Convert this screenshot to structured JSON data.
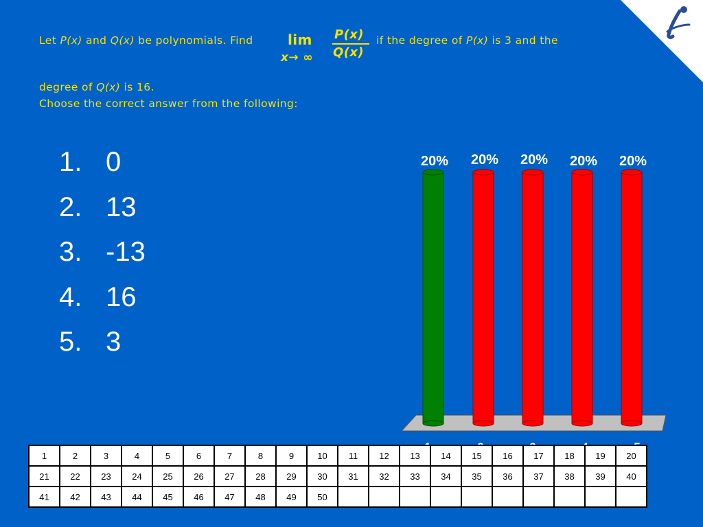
{
  "question": {
    "prefix": "Let ",
    "p": "P(x)",
    "and1": " and ",
    "q": "Q(x)",
    "be": " be polynomials. Find",
    "lim": "lim",
    "limit_sub": "x→ ∞",
    "numerator": "P(x)",
    "denominator": "Q(x)",
    "if_text": "if the degree of ",
    "p2": "P(x)",
    "is3": " is 3 and the",
    "degree_of": "degree of ",
    "q2": "Q(x)",
    "is16": " is 16.",
    "choose": "Choose the correct answer from the following:"
  },
  "answers": [
    {
      "index": "1.",
      "text": "0"
    },
    {
      "index": "2.",
      "text": "13"
    },
    {
      "index": "3.",
      "text": "-13"
    },
    {
      "index": "4.",
      "text": "16"
    },
    {
      "index": "5.",
      "text": "3"
    }
  ],
  "chart_data": {
    "type": "bar",
    "categories": [
      "1",
      "2",
      "3",
      "4",
      "5"
    ],
    "values": [
      20,
      20,
      20,
      20,
      20
    ],
    "data_labels": [
      "20%",
      "20%",
      "20%",
      "20%",
      "20%"
    ],
    "ylim": [
      0,
      20
    ],
    "colors": [
      "#008000",
      "#ff0000",
      "#ff0000",
      "#ff0000",
      "#ff0000"
    ],
    "grid": false
  },
  "response_grid": {
    "rows": [
      [
        "1",
        "2",
        "3",
        "4",
        "5",
        "6",
        "7",
        "8",
        "9",
        "10",
        "11",
        "12",
        "13",
        "14",
        "15",
        "16",
        "17",
        "18",
        "19",
        "20"
      ],
      [
        "21",
        "22",
        "23",
        "24",
        "25",
        "26",
        "27",
        "28",
        "29",
        "30",
        "31",
        "32",
        "33",
        "34",
        "35",
        "36",
        "37",
        "38",
        "39",
        "40"
      ],
      [
        "41",
        "42",
        "43",
        "44",
        "45",
        "46",
        "47",
        "48",
        "49",
        "50",
        "",
        "",
        "",
        "",
        "",
        "",
        "",
        "",
        "",
        ""
      ]
    ]
  },
  "colors": {
    "background": "#0061c8",
    "question_text": "#f5e300",
    "answer_text": "#ffffff"
  },
  "icons": {
    "corner": "turning-point-logo-icon"
  }
}
